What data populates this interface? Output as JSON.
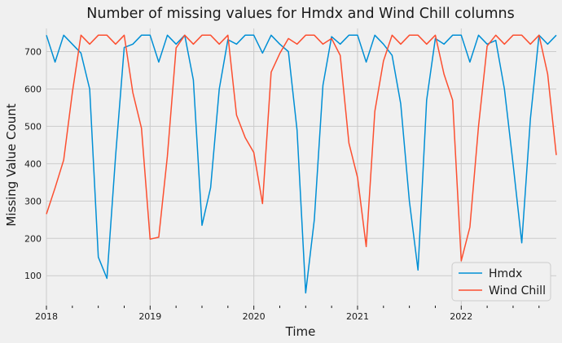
{
  "chart_data": {
    "type": "line",
    "title": "Number of missing values for Hmdx and Wind Chill columns",
    "xlabel": "Time",
    "ylabel": "Missing Value Count",
    "xlim": [
      "2018-01",
      "2022-12"
    ],
    "ylim": [
      20,
      762
    ],
    "yticks": [
      100,
      200,
      300,
      400,
      500,
      600,
      700
    ],
    "year_ticks": [
      "2018",
      "2019",
      "2020",
      "2021",
      "2022"
    ],
    "grid": true,
    "legend": "lower-right",
    "x": [
      "2018-01",
      "2018-02",
      "2018-03",
      "2018-04",
      "2018-05",
      "2018-06",
      "2018-07",
      "2018-08",
      "2018-09",
      "2018-10",
      "2018-11",
      "2018-12",
      "2019-01",
      "2019-02",
      "2019-03",
      "2019-04",
      "2019-05",
      "2019-06",
      "2019-07",
      "2019-08",
      "2019-09",
      "2019-10",
      "2019-11",
      "2019-12",
      "2020-01",
      "2020-02",
      "2020-03",
      "2020-04",
      "2020-05",
      "2020-06",
      "2020-07",
      "2020-08",
      "2020-09",
      "2020-10",
      "2020-11",
      "2020-12",
      "2021-01",
      "2021-02",
      "2021-03",
      "2021-04",
      "2021-05",
      "2021-06",
      "2021-07",
      "2021-08",
      "2021-09",
      "2021-10",
      "2021-11",
      "2021-12",
      "2022-01",
      "2022-02",
      "2022-03",
      "2022-04",
      "2022-05",
      "2022-06",
      "2022-07",
      "2022-08",
      "2022-09",
      "2022-10",
      "2022-11",
      "2022-12"
    ],
    "series": [
      {
        "name": "Hmdx",
        "color": "#008fd5",
        "values": [
          744,
          672,
          744,
          720,
          696,
          600,
          150,
          93,
          420,
          711,
          720,
          744,
          744,
          672,
          744,
          720,
          744,
          624,
          235,
          336,
          600,
          732,
          720,
          744,
          744,
          696,
          744,
          720,
          700,
          490,
          54,
          250,
          610,
          740,
          720,
          744,
          744,
          672,
          744,
          720,
          690,
          560,
          300,
          115,
          570,
          735,
          720,
          744,
          744,
          672,
          744,
          720,
          730,
          600,
          400,
          188,
          520,
          744,
          720,
          744
        ]
      },
      {
        "name": "Wind Chill",
        "color": "#fc4f30",
        "values": [
          265,
          335,
          410,
          590,
          744,
          720,
          744,
          744,
          720,
          744,
          590,
          495,
          198,
          203,
          420,
          710,
          744,
          720,
          744,
          744,
          720,
          744,
          530,
          470,
          430,
          293,
          645,
          695,
          735,
          720,
          744,
          744,
          720,
          735,
          690,
          455,
          363,
          178,
          540,
          675,
          744,
          720,
          744,
          744,
          720,
          744,
          640,
          570,
          140,
          230,
          500,
          715,
          744,
          720,
          744,
          744,
          720,
          744,
          640,
          423
        ]
      }
    ]
  }
}
